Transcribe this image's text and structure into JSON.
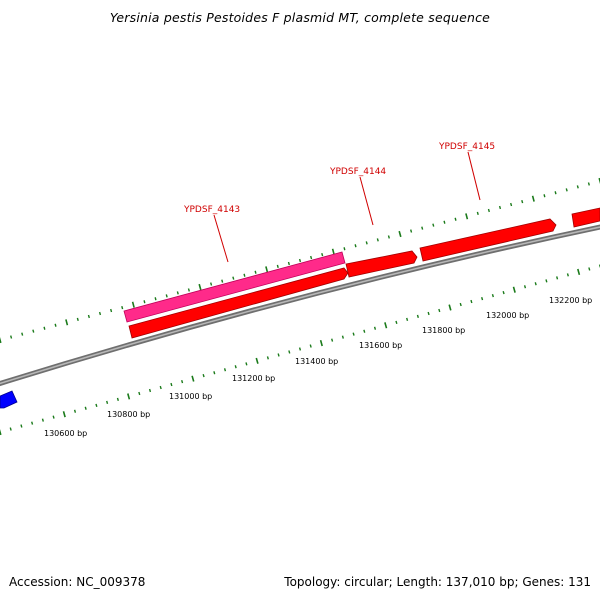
{
  "title": "Yersinia pestis Pestoides F plasmid MT, complete sequence",
  "footer": {
    "accession": "Accession: NC_009378",
    "summary": "Topology: circular; Length: 137,010 bp; Genes: 131"
  },
  "genes": [
    {
      "name": "YPDSF_4143",
      "color": "#ff2a8a",
      "track": "outer-forward"
    },
    {
      "name": "YPDSF_4144",
      "color": "#ff0000",
      "track": "forward"
    },
    {
      "name": "YPDSF_4145",
      "color": "#ff0000",
      "track": "forward"
    },
    {
      "name": "",
      "color": "#ff0000",
      "track": "forward"
    },
    {
      "name": "",
      "color": "#ff0000",
      "track": "forward"
    },
    {
      "name": "",
      "color": "#0000ff",
      "track": "reverse"
    }
  ],
  "scale_labels": [
    "130600 bp",
    "130800 bp",
    "131000 bp",
    "131200 bp",
    "131400 bp",
    "131600 bp",
    "131800 bp",
    "132000 bp",
    "132200 bp"
  ],
  "colors": {
    "backbone": "#808080",
    "tick": "#1a7a1a",
    "label": "#d00000"
  }
}
